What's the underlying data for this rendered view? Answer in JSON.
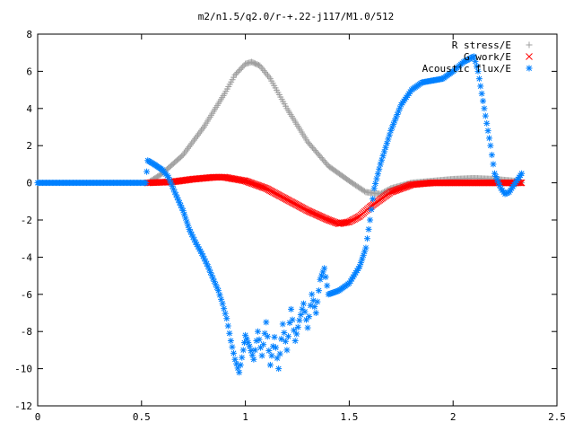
{
  "chart_data": {
    "type": "scatter",
    "title": "m2/n1.5/q2.0/r-+.22-j117/M1.0/512",
    "xlabel": "",
    "ylabel": "",
    "xlim": [
      0,
      2.5
    ],
    "ylim": [
      -12,
      8
    ],
    "grid": false,
    "legend_position": "top-right",
    "x_ticks": [
      "0",
      "0.5",
      "1",
      "1.5",
      "2",
      "2.5"
    ],
    "y_ticks": [
      "-12",
      "-10",
      "-8",
      "-6",
      "-4",
      "-2",
      "0",
      "2",
      "4",
      "6",
      "8"
    ],
    "series": [
      {
        "name": "R stress/E",
        "marker": "+",
        "color": "#a0a0a0",
        "x": [
          0.53,
          0.6,
          0.7,
          0.8,
          0.9,
          0.95,
          1.0,
          1.03,
          1.07,
          1.12,
          1.2,
          1.3,
          1.4,
          1.5,
          1.58,
          1.65,
          1.7,
          1.8,
          1.9,
          2.0,
          2.1,
          2.2,
          2.3,
          2.33
        ],
        "y": [
          0.0,
          0.5,
          1.5,
          3.0,
          4.8,
          5.8,
          6.4,
          6.5,
          6.3,
          5.6,
          4.0,
          2.2,
          0.9,
          0.1,
          -0.5,
          -0.6,
          -0.3,
          0.0,
          0.1,
          0.2,
          0.25,
          0.2,
          0.1,
          0.0
        ]
      },
      {
        "name": "G work/E",
        "marker": "x",
        "color": "#ff0000",
        "x": [
          0.53,
          0.65,
          0.75,
          0.85,
          0.9,
          1.0,
          1.1,
          1.2,
          1.3,
          1.4,
          1.45,
          1.5,
          1.55,
          1.6,
          1.7,
          1.8,
          1.9,
          2.0,
          2.1,
          2.2,
          2.33
        ],
        "y": [
          0.0,
          0.05,
          0.2,
          0.3,
          0.3,
          0.1,
          -0.3,
          -0.9,
          -1.5,
          -2.0,
          -2.2,
          -2.1,
          -1.8,
          -1.3,
          -0.5,
          -0.1,
          0.0,
          0.0,
          0.0,
          0.0,
          0.0
        ]
      },
      {
        "name": "Acoustic flux/E",
        "marker": "*",
        "color": "#0080ff",
        "x": [
          0.0,
          0.1,
          0.2,
          0.3,
          0.4,
          0.5,
          0.52,
          0.53,
          0.56,
          0.6,
          0.63,
          0.66,
          0.7,
          0.73,
          0.76,
          0.79,
          0.82,
          0.85,
          0.87,
          0.89,
          0.91,
          0.93,
          0.95,
          0.97,
          0.99,
          1.0,
          1.02,
          1.04,
          1.06,
          1.08,
          1.1,
          1.12,
          1.14,
          1.16,
          1.18,
          1.2,
          1.22,
          1.24,
          1.26,
          1.28,
          1.3,
          1.32,
          1.34,
          1.36,
          1.38,
          1.4,
          1.45,
          1.5,
          1.55,
          1.58,
          1.6,
          1.62,
          1.65,
          1.7,
          1.75,
          1.8,
          1.85,
          1.9,
          1.95,
          2.0,
          2.05,
          2.1,
          2.12,
          2.15,
          2.18,
          2.2,
          2.23,
          2.25,
          2.27,
          2.3,
          2.33
        ],
        "y": [
          0.0,
          0.0,
          0.0,
          0.0,
          0.0,
          0.0,
          0.0,
          1.2,
          1.0,
          0.7,
          0.3,
          -0.5,
          -1.5,
          -2.5,
          -3.2,
          -3.8,
          -4.5,
          -5.3,
          -5.8,
          -6.5,
          -7.3,
          -8.5,
          -9.5,
          -10.2,
          -9.0,
          -8.2,
          -8.8,
          -9.5,
          -8.0,
          -9.3,
          -7.5,
          -9.8,
          -8.3,
          -10.0,
          -7.6,
          -9.0,
          -6.8,
          -8.5,
          -7.4,
          -6.5,
          -7.8,
          -6.0,
          -7.0,
          -5.2,
          -4.6,
          -6.0,
          -5.8,
          -5.4,
          -4.5,
          -3.5,
          -2.0,
          -0.3,
          1.0,
          2.8,
          4.2,
          5.0,
          5.4,
          5.5,
          5.6,
          6.0,
          6.5,
          6.8,
          6.0,
          4.0,
          2.0,
          0.5,
          -0.3,
          -0.6,
          -0.5,
          0.0,
          0.5
        ]
      }
    ]
  }
}
